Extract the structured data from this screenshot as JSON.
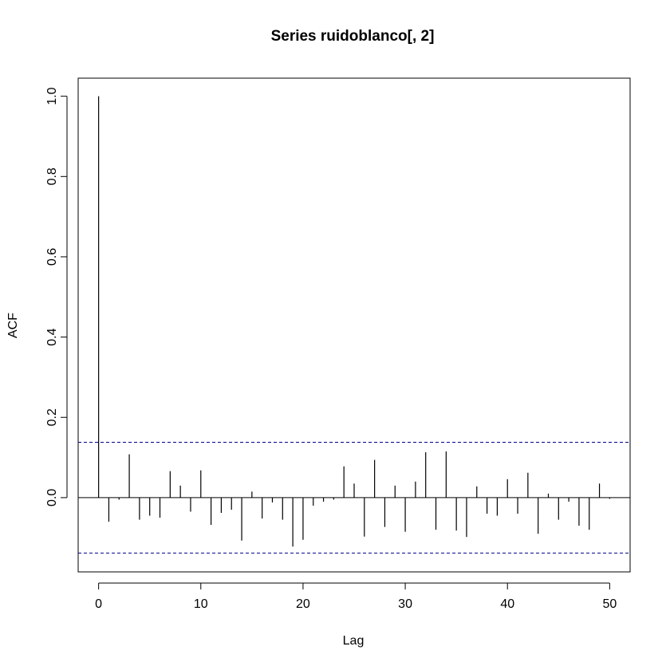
{
  "chart_data": {
    "type": "bar",
    "title": "Series  ruidoblanco[, 2]",
    "xlabel": "Lag",
    "ylabel": "ACF",
    "xlim": [
      -2,
      52
    ],
    "ylim": [
      -0.185,
      1.045
    ],
    "xticks": [
      "0",
      "10",
      "20",
      "30",
      "40",
      "50"
    ],
    "yticks": [
      "0.0",
      "0.2",
      "0.4",
      "0.6",
      "0.8",
      "1.0"
    ],
    "confidence_bound": 0.138,
    "confidence_color": "#00008b",
    "grid": false,
    "x": [
      0,
      1,
      2,
      3,
      4,
      5,
      6,
      7,
      8,
      9,
      10,
      11,
      12,
      13,
      14,
      15,
      16,
      17,
      18,
      19,
      20,
      21,
      22,
      23,
      24,
      25,
      26,
      27,
      28,
      29,
      30,
      31,
      32,
      33,
      34,
      35,
      36,
      37,
      38,
      39,
      40,
      41,
      42,
      43,
      44,
      45,
      46,
      47,
      48,
      49,
      50
    ],
    "values": [
      1.0,
      -0.06,
      -0.005,
      0.108,
      -0.055,
      -0.045,
      -0.05,
      0.066,
      0.03,
      -0.035,
      0.068,
      -0.068,
      -0.038,
      -0.03,
      -0.107,
      0.015,
      -0.052,
      -0.012,
      -0.055,
      -0.122,
      -0.105,
      -0.02,
      -0.01,
      -0.005,
      0.078,
      0.035,
      -0.097,
      0.094,
      -0.073,
      0.03,
      -0.085,
      0.04,
      0.113,
      -0.08,
      0.115,
      -0.082,
      -0.098,
      0.028,
      -0.04,
      -0.045,
      0.046,
      -0.04,
      0.062,
      -0.09,
      0.01,
      -0.055,
      -0.01,
      -0.07,
      -0.08,
      0.035,
      -0.003
    ]
  }
}
